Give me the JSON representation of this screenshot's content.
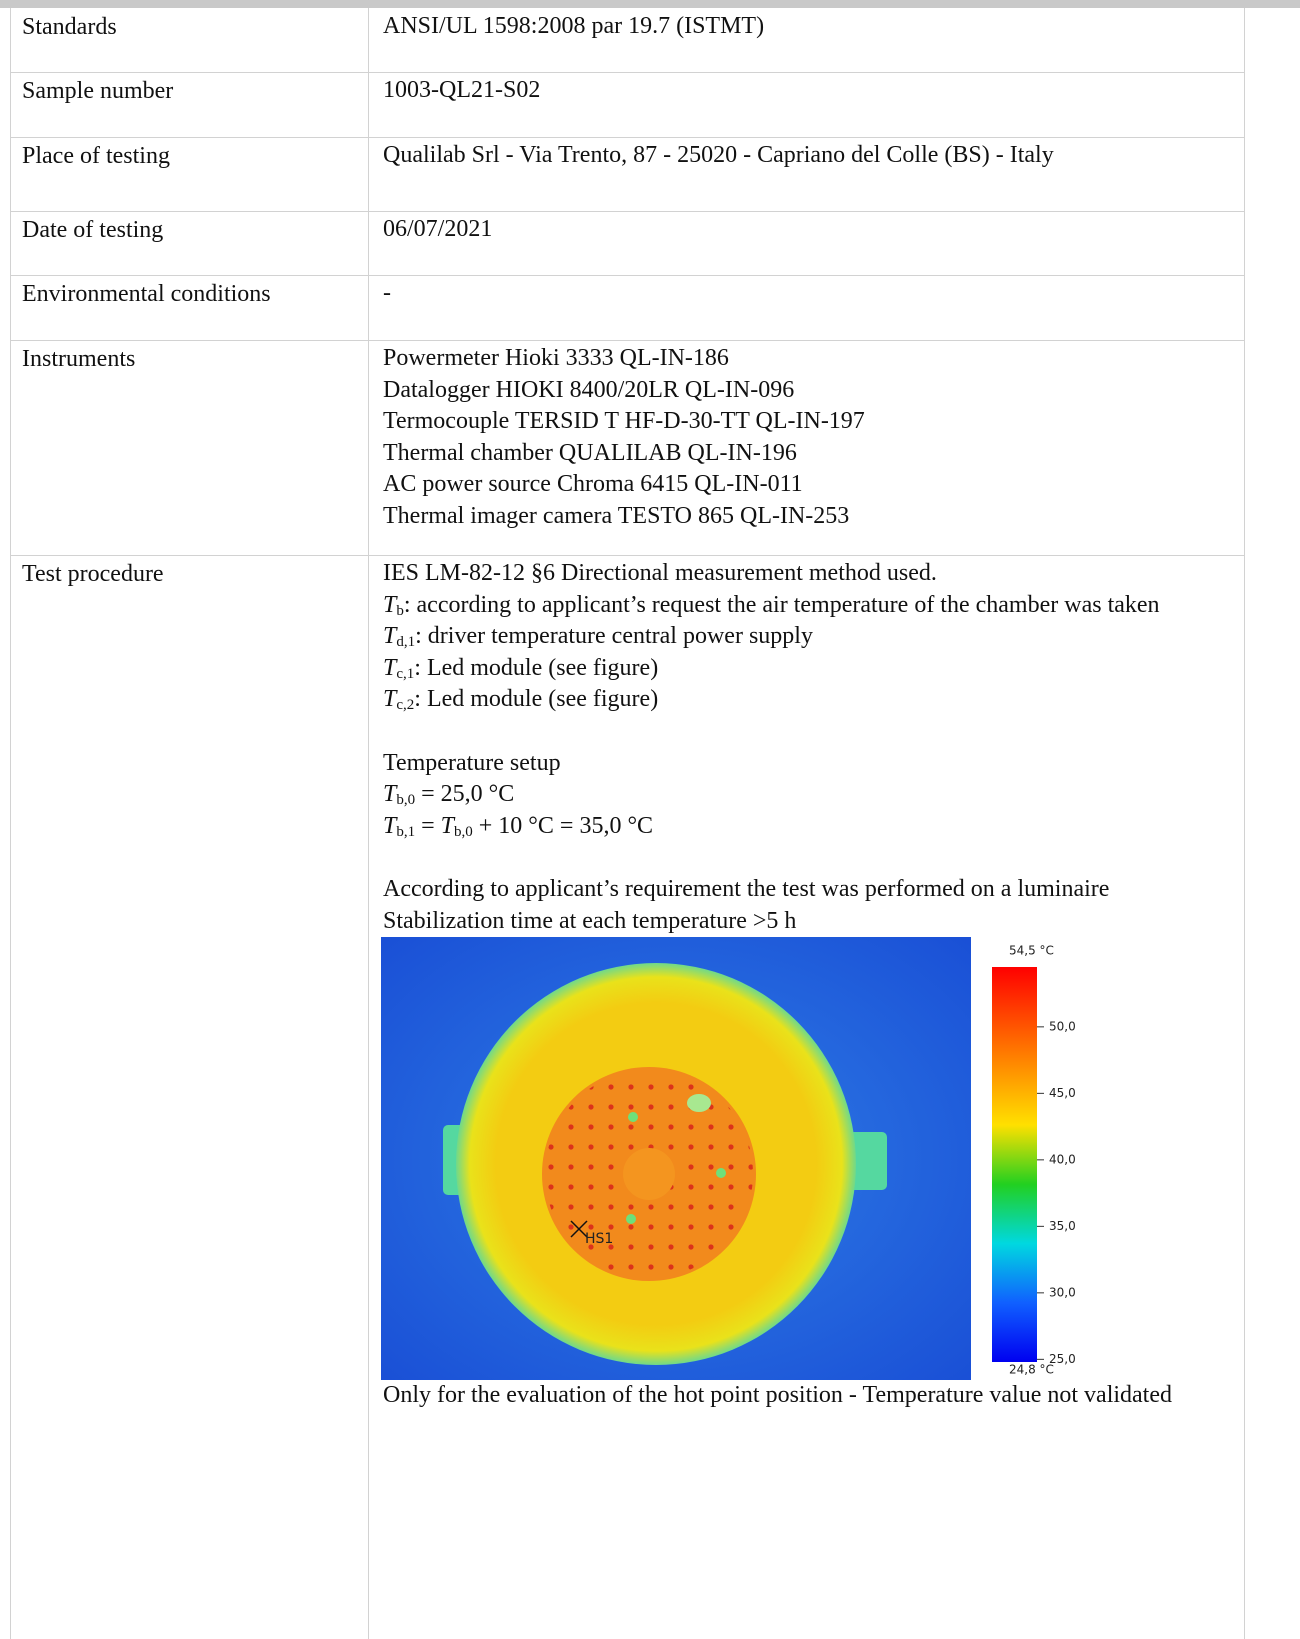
{
  "table": {
    "rows": [
      {
        "label": "Standards",
        "lines": [
          "ANSI/UL 1598:2008 par 19.7 (ISTMT)"
        ]
      },
      {
        "label": "Sample number",
        "lines": [
          "1003-QL21-S02"
        ]
      },
      {
        "label": "Place of testing",
        "lines": [
          "Qualilab Srl - Via Trento, 87 - 25020 - Capriano del Colle (BS) - Italy"
        ]
      },
      {
        "label": "Date of testing",
        "lines": [
          "06/07/2021"
        ]
      },
      {
        "label": "Environmental conditions",
        "lines": [
          "-"
        ]
      },
      {
        "label": "Instruments",
        "lines": [
          "Powermeter Hioki 3333 QL-IN-186",
          "Datalogger HIOKI 8400/20LR QL-IN-096",
          "Termocouple TERSID T HF-D-30-TT QL-IN-197",
          "Thermal chamber QUALILAB QL-IN-196",
          "AC power source Chroma 6415 QL-IN-011",
          "Thermal imager camera TESTO 865 QL-IN-253"
        ]
      }
    ],
    "test_procedure": {
      "label": "Test procedure",
      "blocks": [
        [
          [
            "IES LM-82-12 §6 Directional measurement method used."
          ],
          [
            {
              "symbol": "T",
              "sub": "b"
            },
            ": according to applicant’s request the air temperature of the chamber was taken"
          ],
          [
            {
              "symbol": "T",
              "sub": "d,1"
            },
            ": driver temperature central power supply"
          ],
          [
            {
              "symbol": "T",
              "sub": "c,1"
            },
            ": Led module (see figure)"
          ],
          [
            {
              "symbol": "T",
              "sub": "c,2"
            },
            ": Led module (see figure)"
          ]
        ],
        [
          [
            "Temperature setup"
          ],
          [
            {
              "symbol": "T",
              "sub": "b,0"
            },
            " = 25,0 °C"
          ],
          [
            {
              "symbol": "T",
              "sub": "b,1"
            },
            " = ",
            {
              "symbol": "T",
              "sub": "b,0"
            },
            " + 10 °C = 35,0 °C"
          ]
        ],
        [
          [
            "According to applicant’s requirement the test was performed on a luminaire"
          ],
          [
            "Stabilization time at each temperature >5 h"
          ]
        ]
      ],
      "thermal_image": {
        "max": {
          "value": 54.5,
          "label": "54,5 °C"
        },
        "min": {
          "value": 24.8,
          "label": "24,8 °C"
        },
        "ticks": [
          {
            "value": 50,
            "label": "50,0"
          },
          {
            "value": 45,
            "label": "45,0"
          },
          {
            "value": 40,
            "label": "40,0"
          },
          {
            "value": 35,
            "label": "35,0"
          },
          {
            "value": 30,
            "label": "30,0"
          },
          {
            "value": 25,
            "label": "25,0"
          }
        ],
        "marker": "HS1"
      },
      "caption": "Only for the evaluation of the hot point position - Temperature value not validated"
    }
  }
}
